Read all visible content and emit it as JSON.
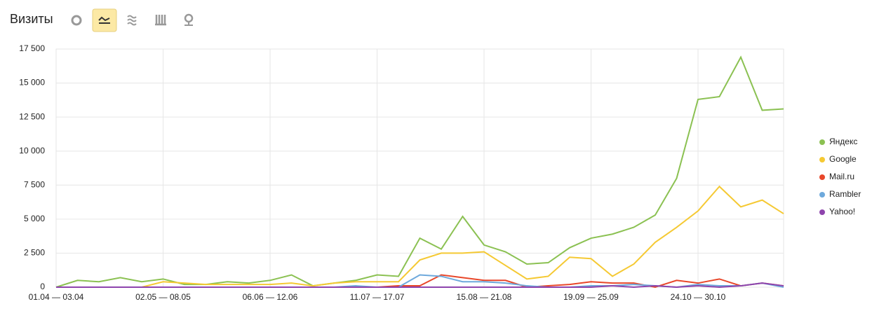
{
  "header": {
    "title": "Визиты"
  },
  "chart_data": {
    "type": "line",
    "categories": [
      "01.04 — 03.04",
      null,
      null,
      null,
      null,
      "02.05 — 08.05",
      null,
      null,
      null,
      null,
      "06.06 — 12.06",
      null,
      null,
      null,
      null,
      "11.07 — 17.07",
      null,
      null,
      null,
      null,
      "15.08 — 21.08",
      null,
      null,
      null,
      null,
      "19.09 — 25.09",
      null,
      null,
      null,
      null,
      "24.10 — 30.10",
      null,
      null,
      null,
      null
    ],
    "series": [
      {
        "name": "Яндекс",
        "color": "#8bc152",
        "values": [
          0,
          500,
          400,
          700,
          400,
          600,
          200,
          200,
          400,
          300,
          500,
          900,
          100,
          300,
          500,
          900,
          800,
          3600,
          2800,
          5200,
          3100,
          2600,
          1700,
          1800,
          2900,
          3600,
          3900,
          4400,
          5300,
          8000,
          13800,
          14000,
          16900,
          13000,
          13100
        ]
      },
      {
        "name": "Google",
        "color": "#f5c933",
        "values": [
          0,
          0,
          0,
          0,
          0,
          400,
          300,
          200,
          200,
          200,
          200,
          300,
          100,
          300,
          400,
          400,
          400,
          2000,
          2500,
          2500,
          2600,
          1600,
          600,
          800,
          2200,
          2100,
          800,
          1700,
          3300,
          4400,
          5600,
          7400,
          5900,
          6400,
          5400
        ]
      },
      {
        "name": "Mail.ru",
        "color": "#e8472a",
        "values": [
          0,
          0,
          0,
          0,
          0,
          0,
          0,
          0,
          0,
          0,
          0,
          0,
          0,
          0,
          0,
          0,
          100,
          100,
          900,
          700,
          500,
          500,
          0,
          100,
          200,
          400,
          300,
          300,
          0,
          500,
          300,
          600,
          100,
          300,
          100
        ]
      },
      {
        "name": "Rambler",
        "color": "#6ea9dc",
        "values": [
          0,
          0,
          0,
          0,
          0,
          0,
          0,
          0,
          0,
          0,
          0,
          0,
          0,
          0,
          100,
          0,
          0,
          900,
          800,
          400,
          400,
          300,
          100,
          0,
          0,
          100,
          100,
          200,
          100,
          0,
          200,
          100,
          100,
          300,
          0
        ]
      },
      {
        "name": "Yahoo!",
        "color": "#8e44ad",
        "values": [
          0,
          0,
          0,
          0,
          0,
          0,
          0,
          0,
          0,
          0,
          0,
          0,
          0,
          0,
          0,
          0,
          0,
          0,
          0,
          0,
          0,
          0,
          0,
          0,
          0,
          0,
          100,
          0,
          100,
          0,
          100,
          0,
          100,
          300,
          100
        ]
      }
    ],
    "ylim": [
      0,
      17500
    ],
    "yticks": [
      {
        "value": 0,
        "label": "0"
      },
      {
        "value": 2500,
        "label": "2 500"
      },
      {
        "value": 5000,
        "label": "5 000"
      },
      {
        "value": 7500,
        "label": "7 500"
      },
      {
        "value": 10000,
        "label": "10 000"
      },
      {
        "value": 12500,
        "label": "12 500"
      },
      {
        "value": 15000,
        "label": "15 000"
      },
      {
        "value": 17500,
        "label": "17 500"
      }
    ],
    "grid": true,
    "legend": "right"
  }
}
